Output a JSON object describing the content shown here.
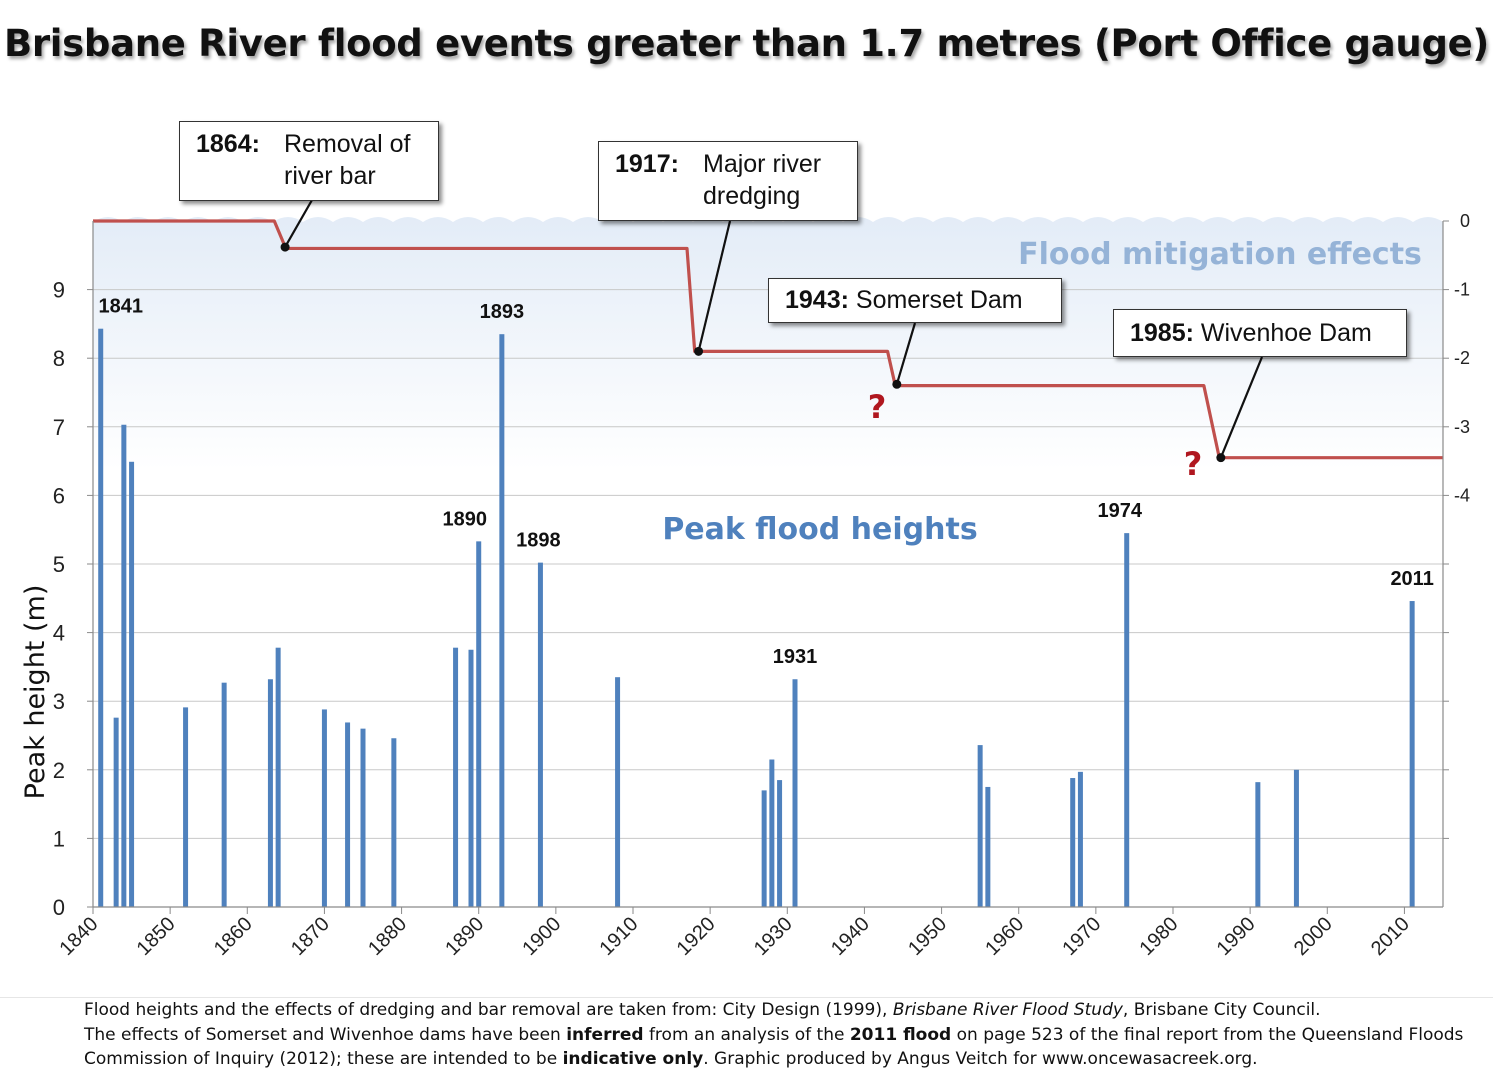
{
  "title": "Brisbane River flood events greater than 1.7 metres (Port Office gauge)",
  "colors": {
    "bars": "#4f81bd",
    "mitigation_line": "#c0504d",
    "question": "#b0171f",
    "flood_label": "#4f81bd",
    "mitigation_label": "#95b3d7"
  },
  "labels": {
    "peak_flood_heights": "Peak flood heights",
    "flood_mitigation_effects": "Flood mitigation effects",
    "question_mark": "?"
  },
  "callouts": [
    {
      "year": "1864:",
      "text_line1": "Removal of",
      "text_line2": "river bar"
    },
    {
      "year": "1917:",
      "text_line1": "Major river",
      "text_line2": "dredging"
    },
    {
      "year": "1943:",
      "text_line1": "Somerset Dam",
      "text_line2": ""
    },
    {
      "year": "1985:",
      "text_line1": "Wivenhoe Dam",
      "text_line2": ""
    }
  ],
  "chart_data": {
    "type": "bar",
    "ylabel": "Peak height (m)",
    "xlabel": "",
    "xlim": [
      1840,
      2015
    ],
    "ylim": [
      0,
      10
    ],
    "y_ticks": [
      0,
      1,
      2,
      3,
      4,
      5,
      6,
      7,
      8,
      9
    ],
    "x_ticks": [
      1840,
      1850,
      1860,
      1870,
      1880,
      1890,
      1900,
      1910,
      1920,
      1930,
      1940,
      1950,
      1960,
      1970,
      1980,
      1990,
      2000,
      2010
    ],
    "right_axis": {
      "ylim": [
        -10,
        0
      ],
      "ticks": [
        0,
        -1,
        -2,
        -3,
        -4
      ]
    },
    "grid": true,
    "series": [
      {
        "name": "Peak flood heights",
        "points": [
          {
            "x": 1841,
            "y": 8.43
          },
          {
            "x": 1843,
            "y": 2.76
          },
          {
            "x": 1844,
            "y": 7.03
          },
          {
            "x": 1845,
            "y": 6.49
          },
          {
            "x": 1852,
            "y": 2.91
          },
          {
            "x": 1857,
            "y": 3.27
          },
          {
            "x": 1863,
            "y": 3.32
          },
          {
            "x": 1864,
            "y": 3.78
          },
          {
            "x": 1870,
            "y": 2.88
          },
          {
            "x": 1873,
            "y": 2.69
          },
          {
            "x": 1875,
            "y": 2.6
          },
          {
            "x": 1879,
            "y": 2.46
          },
          {
            "x": 1887,
            "y": 3.78
          },
          {
            "x": 1889,
            "y": 3.75
          },
          {
            "x": 1890,
            "y": 5.33
          },
          {
            "x": 1893,
            "y": 8.35
          },
          {
            "x": 1898,
            "y": 5.02
          },
          {
            "x": 1908,
            "y": 3.35
          },
          {
            "x": 1927,
            "y": 1.7
          },
          {
            "x": 1928,
            "y": 2.15
          },
          {
            "x": 1929,
            "y": 1.85
          },
          {
            "x": 1931,
            "y": 3.32
          },
          {
            "x": 1955,
            "y": 2.36
          },
          {
            "x": 1956,
            "y": 1.75
          },
          {
            "x": 1967,
            "y": 1.88
          },
          {
            "x": 1968,
            "y": 1.97
          },
          {
            "x": 1974,
            "y": 5.45
          },
          {
            "x": 1991,
            "y": 1.82
          },
          {
            "x": 1996,
            "y": 2.0
          },
          {
            "x": 2011,
            "y": 4.46
          }
        ]
      },
      {
        "name": "Flood mitigation effects",
        "type": "step_line",
        "axis": "right",
        "points": [
          {
            "x": 1840,
            "y": 0
          },
          {
            "x": 1863.5,
            "y": 0
          },
          {
            "x": 1865,
            "y": -0.4
          },
          {
            "x": 1917,
            "y": -0.4
          },
          {
            "x": 1918,
            "y": -1.9
          },
          {
            "x": 1943,
            "y": -1.9
          },
          {
            "x": 1944,
            "y": -2.4
          },
          {
            "x": 1984,
            "y": -2.4
          },
          {
            "x": 1986,
            "y": -3.45
          },
          {
            "x": 2015,
            "y": -3.45
          }
        ]
      }
    ],
    "annotations": [
      {
        "x": 1841,
        "text": "1841"
      },
      {
        "x": 1890,
        "text": "1890"
      },
      {
        "x": 1893,
        "text": "1893"
      },
      {
        "x": 1898,
        "text": "1898"
      },
      {
        "x": 1931,
        "text": "1931"
      },
      {
        "x": 1974,
        "text": "1974"
      },
      {
        "x": 2011,
        "text": "2011"
      }
    ]
  },
  "footnote": {
    "line1_a": "Flood heights and the effects of dredging and bar removal are taken from: City Design (1999), ",
    "line1_b": "Brisbane River Flood Study",
    "line1_c": ", Brisbane City Council.",
    "line2_a": "The effects of Somerset and Wivenhoe dams have been ",
    "line2_b": "inferred",
    "line2_c": " from an analysis of the ",
    "line2_d": "2011 flood",
    "line2_e": " on page 523 of the final report from the Queensland Floods",
    "line3_a": "Commission of Inquiry (2012); these are intended to be ",
    "line3_b": "indicative only",
    "line3_c": ". Graphic produced by Angus Veitch for www.oncewasacreek.org."
  }
}
